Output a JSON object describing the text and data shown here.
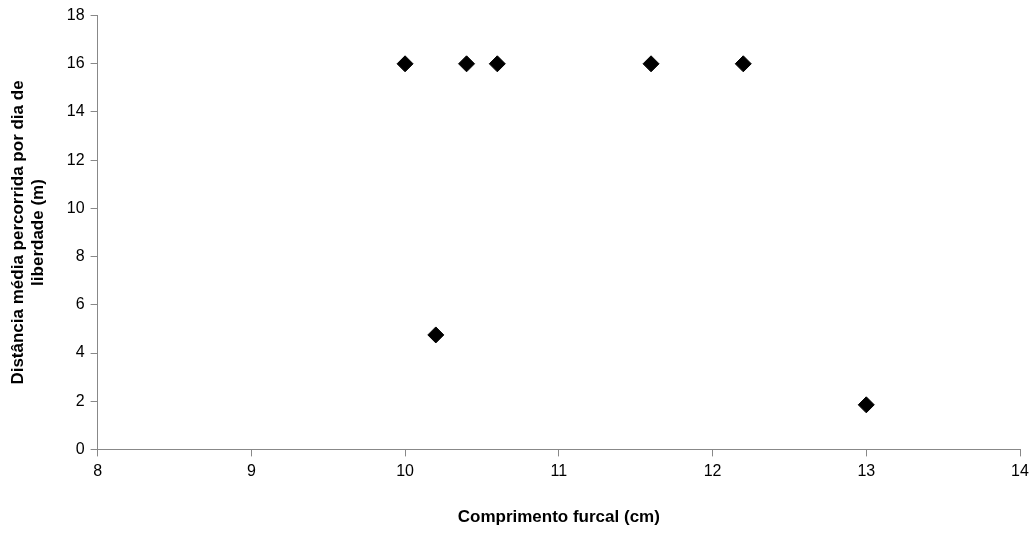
{
  "chart_data": {
    "type": "scatter",
    "xlabel": "Comprimento furcal (cm)",
    "ylabel": "Distância média percorrida por dia de liberdade (m)",
    "x": [
      10,
      10.2,
      10.4,
      10.6,
      11.6,
      12.2,
      13
    ],
    "series": [
      {
        "color": "#000000",
        "values": [
          16,
          4.75,
          16,
          16,
          16,
          16,
          1.85
        ]
      }
    ],
    "xlim": [
      8,
      14
    ],
    "xticks": [
      8,
      9,
      10,
      11,
      12,
      13,
      14
    ],
    "ylim": [
      0,
      18
    ],
    "yticks": [
      0,
      2,
      4,
      6,
      8,
      10,
      12,
      14,
      16,
      18
    ],
    "marker": "diamond",
    "grid": false,
    "legend": false
  }
}
